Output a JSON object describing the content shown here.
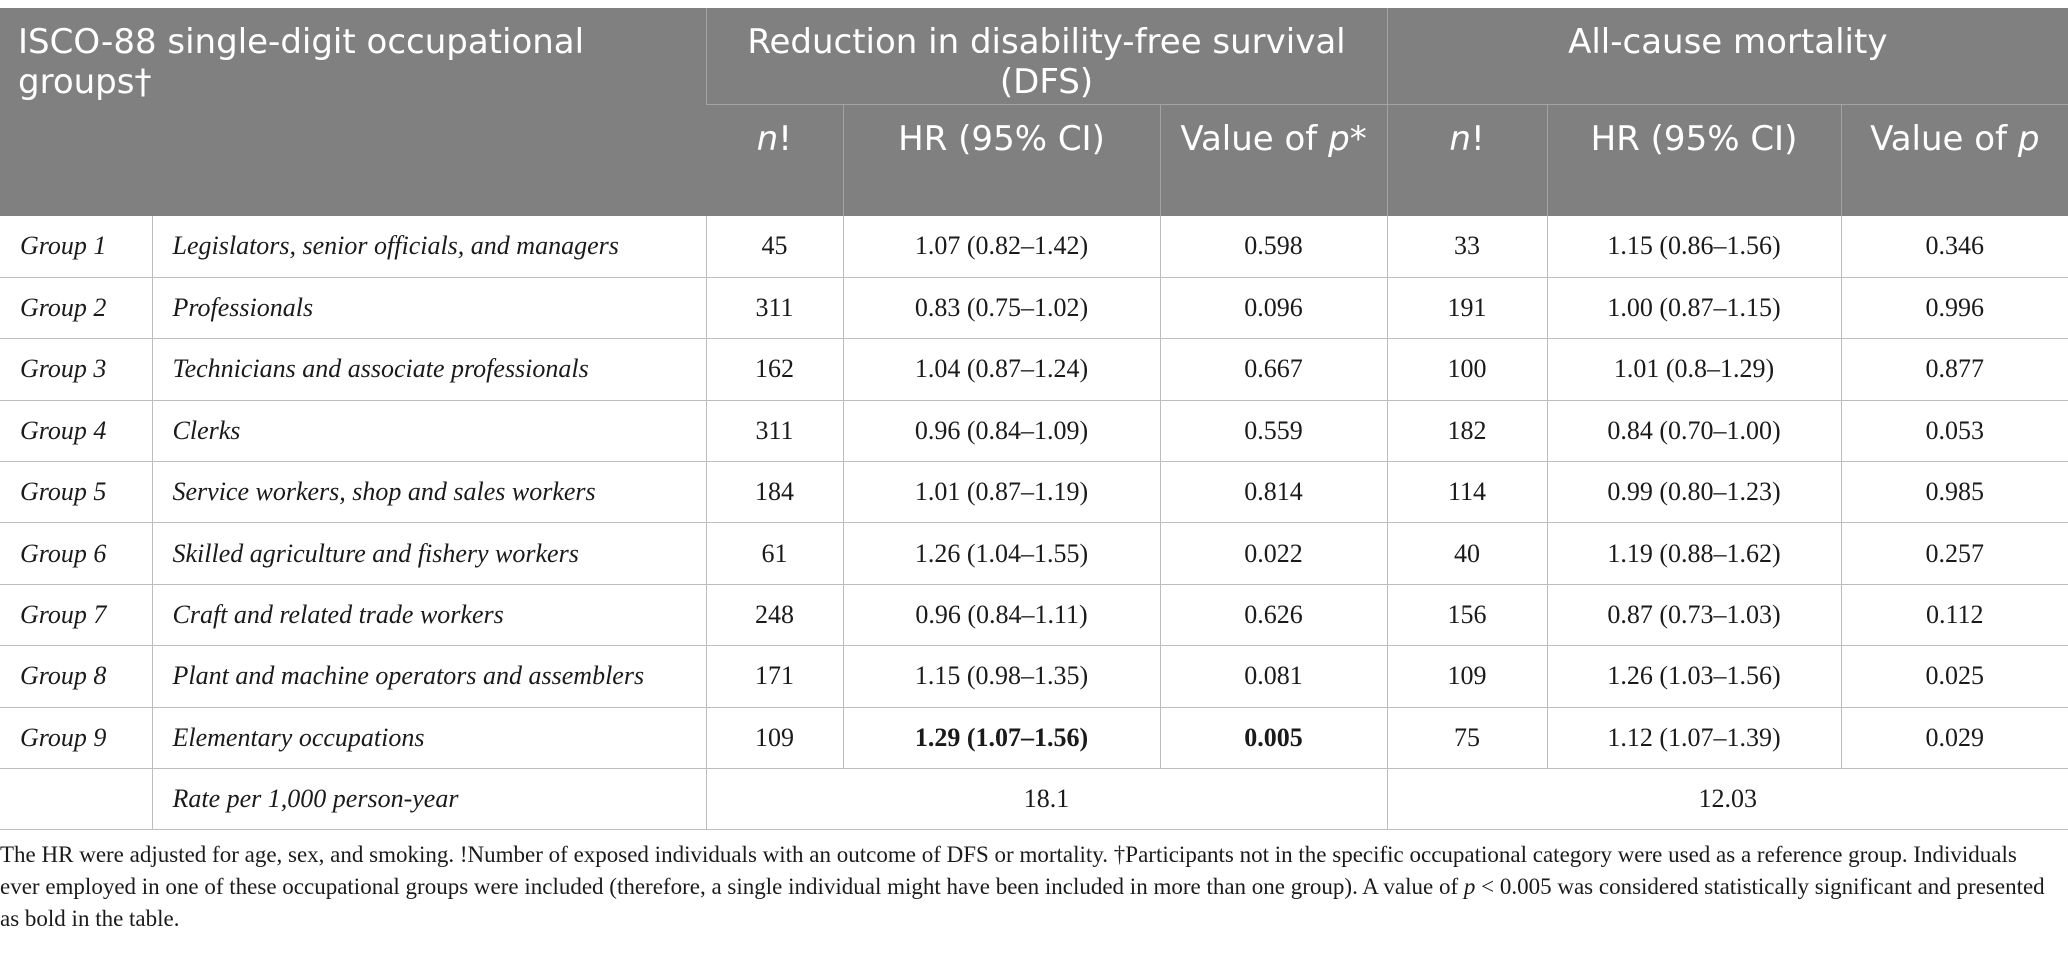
{
  "header": {
    "col1": "ISCO-88 single-digit occupational groups†",
    "dfs_group": "Reduction in disability-free survival (DFS)",
    "mort_group": "All-cause mortality",
    "n_italic": "n",
    "n_suffix": "!",
    "hr": "HR (95% CI)",
    "p_dfs_text": "Value of ",
    "p_dfs_italic": "p",
    "p_dfs_suffix": "*",
    "p_mort_text": "Value of ",
    "p_mort_italic": "p"
  },
  "rows": [
    {
      "group": "Group 1",
      "occupation": "Legislators, senior officials, and managers",
      "dfs_n": "45",
      "dfs_hr": "1.07 (0.82–1.42)",
      "dfs_p": "0.598",
      "mort_n": "33",
      "mort_hr": "1.15 (0.86–1.56)",
      "mort_p": "0.346"
    },
    {
      "group": "Group 2",
      "occupation": "Professionals",
      "dfs_n": "311",
      "dfs_hr": "0.83 (0.75–1.02)",
      "dfs_p": "0.096",
      "mort_n": "191",
      "mort_hr": "1.00 (0.87–1.15)",
      "mort_p": "0.996"
    },
    {
      "group": "Group 3",
      "occupation": "Technicians and associate professionals",
      "dfs_n": "162",
      "dfs_hr": "1.04 (0.87–1.24)",
      "dfs_p": "0.667",
      "mort_n": "100",
      "mort_hr": "1.01 (0.8–1.29)",
      "mort_p": "0.877"
    },
    {
      "group": "Group 4",
      "occupation": "Clerks",
      "dfs_n": "311",
      "dfs_hr": "0.96 (0.84–1.09)",
      "dfs_p": "0.559",
      "mort_n": "182",
      "mort_hr": "0.84 (0.70–1.00)",
      "mort_p": "0.053"
    },
    {
      "group": "Group 5",
      "occupation": "Service workers, shop and sales workers",
      "dfs_n": "184",
      "dfs_hr": "1.01 (0.87–1.19)",
      "dfs_p": "0.814",
      "mort_n": "114",
      "mort_hr": "0.99 (0.80–1.23)",
      "mort_p": "0.985"
    },
    {
      "group": "Group 6",
      "occupation": "Skilled agriculture and fishery workers",
      "dfs_n": "61",
      "dfs_hr": "1.26 (1.04–1.55)",
      "dfs_p": "0.022",
      "mort_n": "40",
      "mort_hr": "1.19 (0.88–1.62)",
      "mort_p": "0.257"
    },
    {
      "group": "Group 7",
      "occupation": "Craft and related trade workers",
      "dfs_n": "248",
      "dfs_hr": "0.96 (0.84–1.11)",
      "dfs_p": "0.626",
      "mort_n": "156",
      "mort_hr": "0.87 (0.73–1.03)",
      "mort_p": "0.112"
    },
    {
      "group": "Group 8",
      "occupation": "Plant and machine operators and assemblers",
      "dfs_n": "171",
      "dfs_hr": "1.15 (0.98–1.35)",
      "dfs_p": "0.081",
      "mort_n": "109",
      "mort_hr": "1.26 (1.03–1.56)",
      "mort_p": "0.025"
    },
    {
      "group": "Group 9",
      "occupation": "Elementary occupations",
      "dfs_n": "109",
      "dfs_hr": "1.29 (1.07–1.56)",
      "dfs_p": "0.005",
      "mort_n": "75",
      "mort_hr": "1.12 (1.07–1.39)",
      "mort_p": "0.029"
    }
  ],
  "rate_row": {
    "label": "Rate per 1,000 person-year",
    "dfs": "18.1",
    "mort": "12.03"
  },
  "footnote": {
    "part1": "The HR were adjusted for age, sex, and smoking. !Number of exposed individuals with an outcome of DFS or mortality. †Participants not in the specific occupational category were used as a reference group. Individuals ever employed in one of these occupational groups were included (therefore, a single individual might have been included in more than one group). A value of ",
    "p_italic": "p",
    "part2": " < 0.005 was considered statistically significant and presented as bold in the table."
  }
}
